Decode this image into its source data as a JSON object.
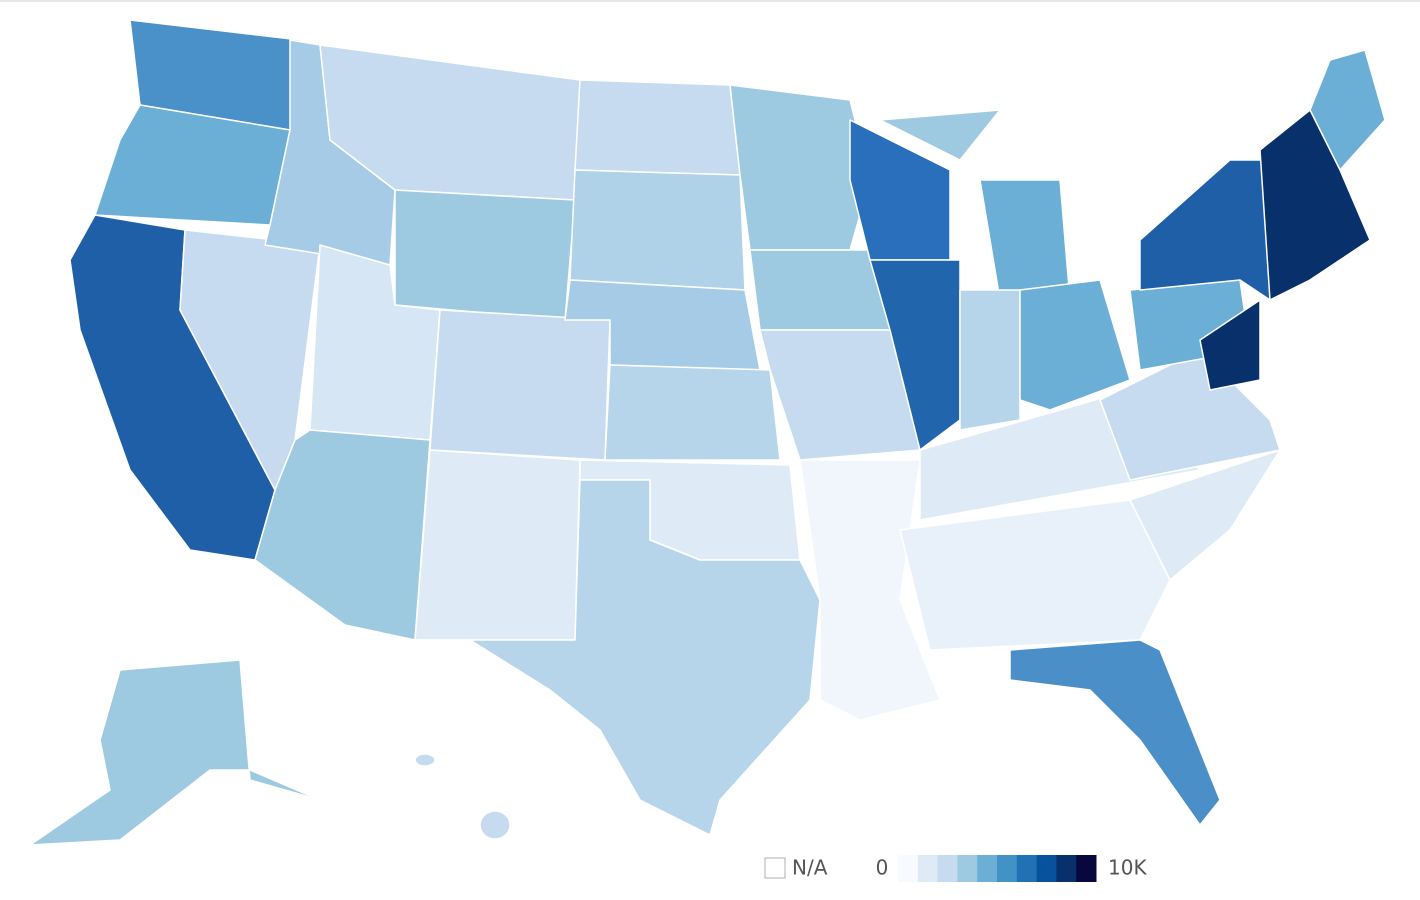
{
  "legend": {
    "na_label": "N/A",
    "min_label": "0",
    "max_label": "10K",
    "colors": [
      "#f7fbff",
      "#deebf7",
      "#c6dbef",
      "#9ecae1",
      "#6baed6",
      "#4292c6",
      "#2171b5",
      "#08519c",
      "#08306b",
      "#08083f"
    ]
  }
}
